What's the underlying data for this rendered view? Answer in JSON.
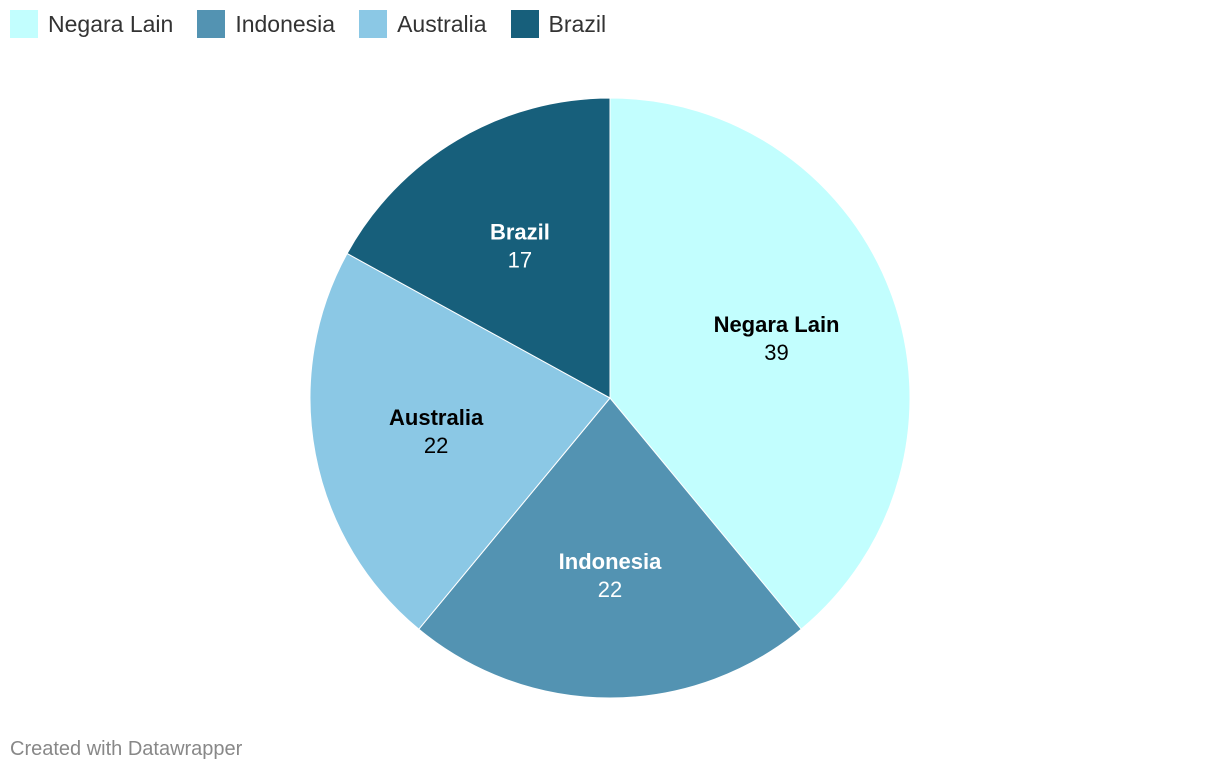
{
  "chart_data": {
    "type": "pie",
    "slices": [
      {
        "label": "Negara Lain",
        "value": 39,
        "color": "#c2fefe",
        "label_color": "#000000"
      },
      {
        "label": "Indonesia",
        "value": 22,
        "color": "#5393b2",
        "label_color": "#ffffff"
      },
      {
        "label": "Australia",
        "value": 22,
        "color": "#8bc8e5",
        "label_color": "#000000"
      },
      {
        "label": "Brazil",
        "value": 17,
        "color": "#175f7b",
        "label_color": "#ffffff"
      }
    ],
    "legend": {
      "placement": "top-left",
      "entries": [
        "Negara Lain",
        "Indonesia",
        "Australia",
        "Brazil"
      ]
    }
  },
  "footer": {
    "credit": "Created with Datawrapper"
  }
}
